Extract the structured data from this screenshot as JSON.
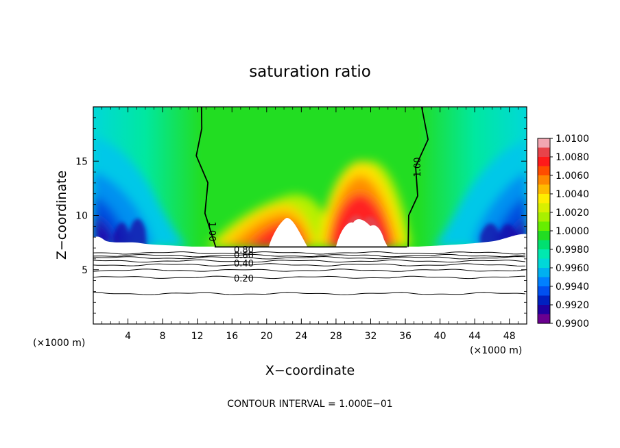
{
  "chart_data": {
    "type": "heatmap",
    "title": "saturation ratio",
    "xlabel": "X−coordinate",
    "ylabel": "Z−coordinate",
    "x_unit": "(×1000 m)",
    "z_unit": "(×1000 m)",
    "footer": "CONTOUR INTERVAL = 1.000E−01",
    "xlim": [
      0,
      50
    ],
    "ylim": [
      0,
      20
    ],
    "x_ticks": [
      4,
      8,
      12,
      16,
      20,
      24,
      28,
      32,
      36,
      40,
      44,
      48
    ],
    "y_ticks": [
      5,
      10,
      15
    ],
    "x_tick_labels": [
      "4",
      "8",
      "12",
      "16",
      "20",
      "24",
      "28",
      "32",
      "36",
      "40",
      "44",
      "48"
    ],
    "y_tick_labels": [
      "5",
      "10",
      "15"
    ],
    "colorbar": {
      "min": 0.99,
      "max": 1.01,
      "labels": [
        "1.0100",
        "1.0080",
        "1.0060",
        "1.0040",
        "1.0020",
        "1.0000",
        "0.9980",
        "0.9960",
        "0.9940",
        "0.9920",
        "0.9900"
      ],
      "colors": [
        "#f2a6b2",
        "#e8434a",
        "#ff1a1a",
        "#ff4d00",
        "#ff8800",
        "#ffbb00",
        "#ffee00",
        "#d8f000",
        "#a8f000",
        "#66ee00",
        "#22dd22",
        "#00e070",
        "#00e8b0",
        "#00d8d8",
        "#00b0f0",
        "#0080ff",
        "#0050f0",
        "#0020c0",
        "#2000a0",
        "#6a0090"
      ]
    },
    "contour_labels": [
      {
        "text": "1.00",
        "x": 13.4,
        "z": 8.5
      },
      {
        "text": "1.00",
        "x": 37.3,
        "z": 14.0
      },
      {
        "text": "0.80",
        "x": 17.5,
        "z": 6.55
      },
      {
        "text": "0.60",
        "x": 17.5,
        "z": 6.2
      },
      {
        "text": "0.40",
        "x": 17.5,
        "z": 5.5
      },
      {
        "text": "0.20",
        "x": 17.5,
        "z": 4.1
      }
    ],
    "dry_contours": [
      {
        "level": 0.8,
        "z": 6.55
      },
      {
        "level": 0.7,
        "z": 6.3
      },
      {
        "level": 0.6,
        "z": 6.1
      },
      {
        "level": 0.5,
        "z": 5.8
      },
      {
        "level": 0.4,
        "z": 5.45
      },
      {
        "level": 0.3,
        "z": 4.95
      },
      {
        "level": 0.2,
        "z": 4.3
      },
      {
        "level": 0.1,
        "z": 2.8
      }
    ],
    "saturation_line_left": [
      [
        14.0,
        7.1
      ],
      [
        13.0,
        10.2
      ],
      [
        13.1,
        13.0
      ],
      [
        12.0,
        15.5
      ],
      [
        12.4,
        18.0
      ],
      [
        12.6,
        20.0
      ]
    ],
    "saturation_line_right": [
      [
        36.2,
        7.1
      ],
      [
        36.5,
        10.0
      ],
      [
        37.3,
        11.8
      ],
      [
        37.3,
        14.5
      ],
      [
        38.5,
        17.0
      ],
      [
        38.0,
        20.0
      ]
    ],
    "cloud_base_z": 7.1
  }
}
